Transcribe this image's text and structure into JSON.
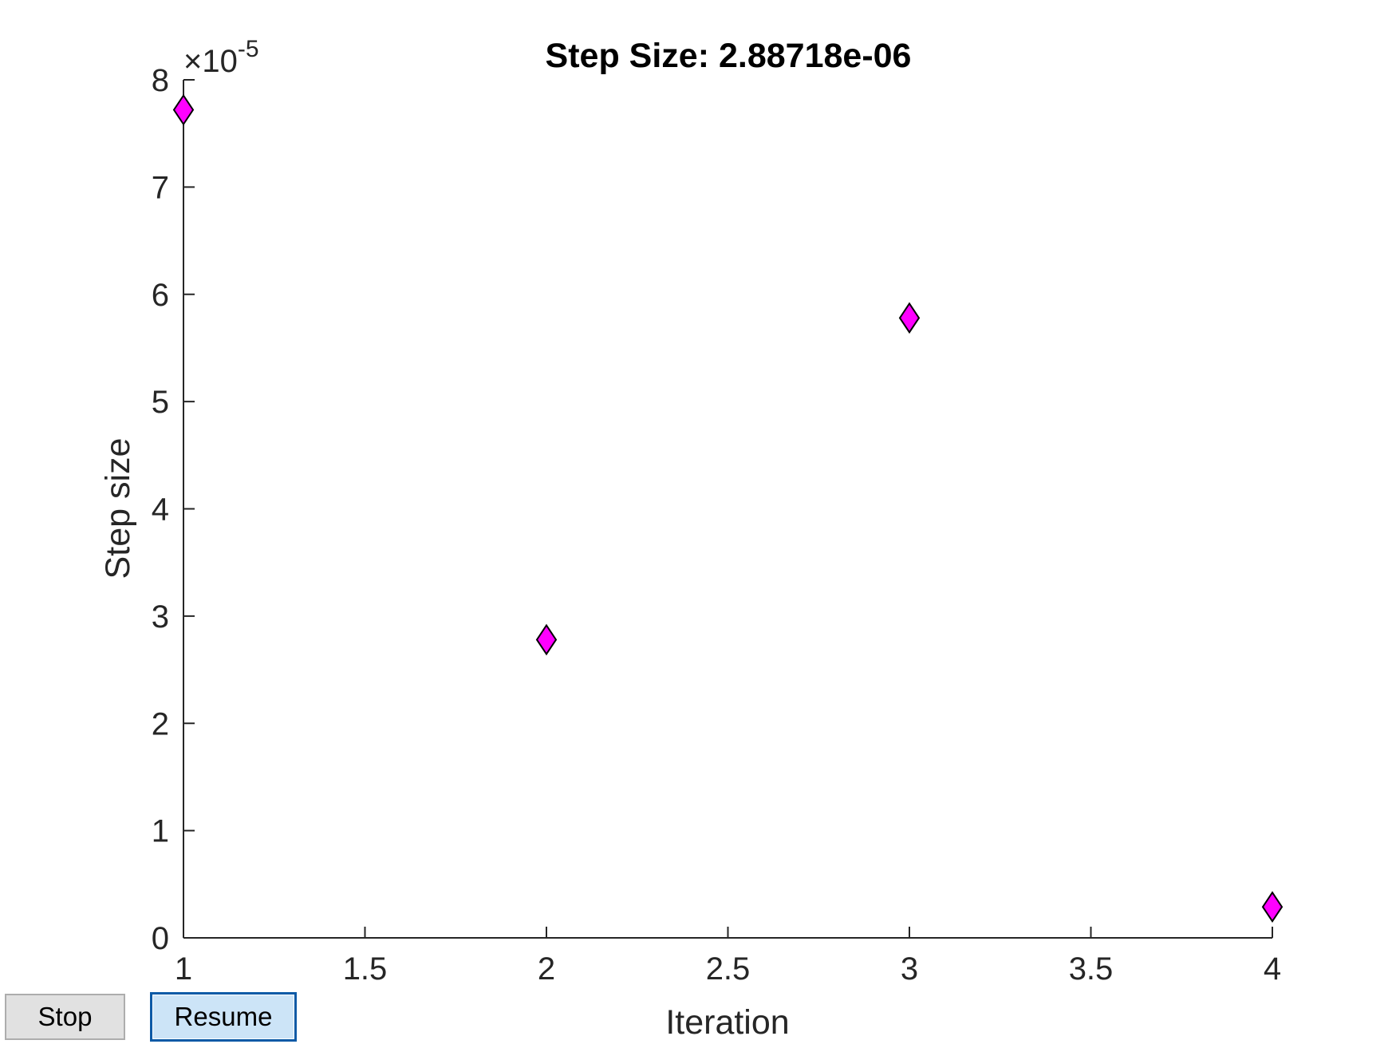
{
  "chart_data": {
    "type": "scatter",
    "title": "Step Size: 2.88718e-06",
    "xlabel": "Iteration",
    "ylabel": "Step size",
    "y_exponent_label": "×10",
    "y_exponent_power": "-5",
    "xlim": [
      1,
      4
    ],
    "ylim": [
      0,
      8e-05
    ],
    "x_ticks": [
      1,
      1.5,
      2,
      2.5,
      3,
      3.5,
      4
    ],
    "x_tick_labels": [
      "1",
      "1.5",
      "2",
      "2.5",
      "3",
      "3.5",
      "4"
    ],
    "y_ticks": [
      0,
      1,
      2,
      3,
      4,
      5,
      6,
      7,
      8
    ],
    "y_tick_labels": [
      "0",
      "1",
      "2",
      "3",
      "4",
      "5",
      "6",
      "7",
      "8"
    ],
    "grid": false,
    "marker": "diamond",
    "marker_color": "#ff00ff",
    "points": [
      {
        "x": 1,
        "y": 7.72e-05
      },
      {
        "x": 2,
        "y": 2.78e-05
      },
      {
        "x": 3,
        "y": 5.78e-05
      },
      {
        "x": 4,
        "y": 2.88718e-06
      }
    ]
  },
  "controls": {
    "stop_label": "Stop",
    "resume_label": "Resume"
  }
}
